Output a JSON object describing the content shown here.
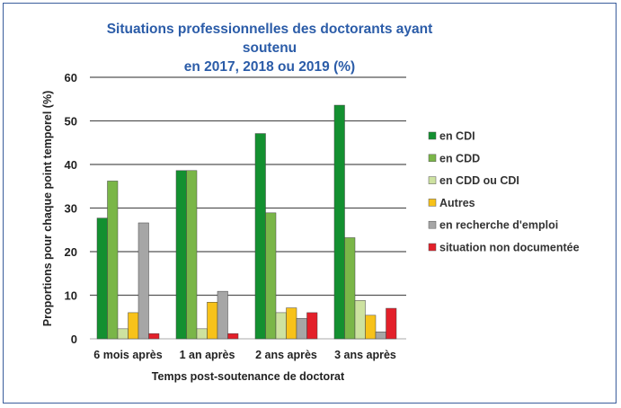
{
  "chart_data": {
    "type": "bar",
    "title": "Situations professionnelles des doctorants ayant soutenu en 2017, 2018 ou 2019  (%)",
    "title_lines": [
      "Situations professionnelles des doctorants ayant soutenu",
      "en 2017, 2018 ou 2019  (%)"
    ],
    "xlabel": "Temps post-soutenance de doctorat",
    "ylabel": "Proportions  pour chaque point temporel (%)",
    "ylim": [
      0,
      60
    ],
    "yticks": [
      0,
      10,
      20,
      30,
      40,
      50,
      60
    ],
    "grid": true,
    "legend_position": "right",
    "categories": [
      "6 mois après",
      "1 an après",
      "2 ans après",
      "3 ans après"
    ],
    "series": [
      {
        "name": "en CDI",
        "color": "#139030",
        "values": [
          27.7,
          38.6,
          47.1,
          53.6
        ]
      },
      {
        "name": "en CDD",
        "color": "#7ab648",
        "values": [
          36.2,
          38.6,
          28.9,
          23.2
        ]
      },
      {
        "name": "en CDD ou CDI",
        "color": "#cde2a0",
        "values": [
          2.3,
          2.3,
          6.0,
          8.8
        ]
      },
      {
        "name": "Autres",
        "color": "#f7c21a",
        "values": [
          6.0,
          8.4,
          7.1,
          5.4
        ]
      },
      {
        "name": "en recherche d'emploi",
        "color": "#a6a6a6",
        "values": [
          26.6,
          10.9,
          4.7,
          1.6
        ]
      },
      {
        "name": "situation non documentée",
        "color": "#e3202a",
        "values": [
          1.2,
          1.2,
          6.0,
          7.0
        ]
      }
    ]
  }
}
